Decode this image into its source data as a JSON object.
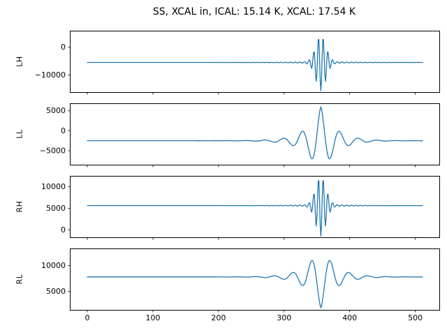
{
  "title": "SS, XCAL in, ICAL: 15.14 K, XCAL: 17.54 K",
  "style": {
    "line_color": "#1f77b4",
    "axis_color": "#000000",
    "background_color": "#ffffff"
  },
  "xticks": [
    0,
    100,
    200,
    300,
    400,
    500
  ],
  "chart_data": [
    {
      "type": "line",
      "label": "LH",
      "n_points": 512,
      "xlim": [
        -25.6,
        536.6
      ],
      "ylim": [
        -16000,
        5500
      ],
      "yticks": [
        -10000,
        0
      ],
      "baseline": -5500,
      "pulse": {
        "center": 356,
        "amplitude": 9500,
        "sign": -1,
        "frequency": 0.14,
        "width": 11,
        "power": 2,
        "tail_amplitude": 0.05,
        "tail_tau": 35
      },
      "show_xticklabels": false
    },
    {
      "type": "line",
      "label": "LL",
      "n_points": 512,
      "xlim": [
        -25.6,
        536.6
      ],
      "ylim": [
        -8500,
        6700
      ],
      "yticks": [
        -5000,
        0,
        5000
      ],
      "baseline": -2500,
      "pulse": {
        "center": 356,
        "amplitude": 8500,
        "sign": 1,
        "frequency": 0.035,
        "width": 22,
        "power": 1,
        "tail_amplitude": 0,
        "tail_tau": 1
      },
      "show_xticklabels": false
    },
    {
      "type": "line",
      "label": "RH",
      "n_points": 512,
      "xlim": [
        -25.6,
        536.6
      ],
      "ylim": [
        -1700,
        12300
      ],
      "yticks": [
        0,
        5000,
        10000
      ],
      "baseline": 5600,
      "pulse": {
        "center": 356,
        "amplitude": 6700,
        "sign": -1,
        "frequency": 0.14,
        "width": 11,
        "power": 2,
        "tail_amplitude": 0.05,
        "tail_tau": 35
      },
      "show_xticklabels": false
    },
    {
      "type": "line",
      "label": "RL",
      "n_points": 512,
      "xlim": [
        -25.6,
        536.6
      ],
      "ylim": [
        1400,
        13200
      ],
      "yticks": [
        5000,
        10000
      ],
      "baseline": 7800,
      "pulse": {
        "center": 356,
        "amplitude": 6000,
        "sign": -1,
        "frequency": 0.035,
        "width": 22,
        "power": 1,
        "tail_amplitude": 0,
        "tail_tau": 1
      },
      "show_xticklabels": true
    }
  ]
}
